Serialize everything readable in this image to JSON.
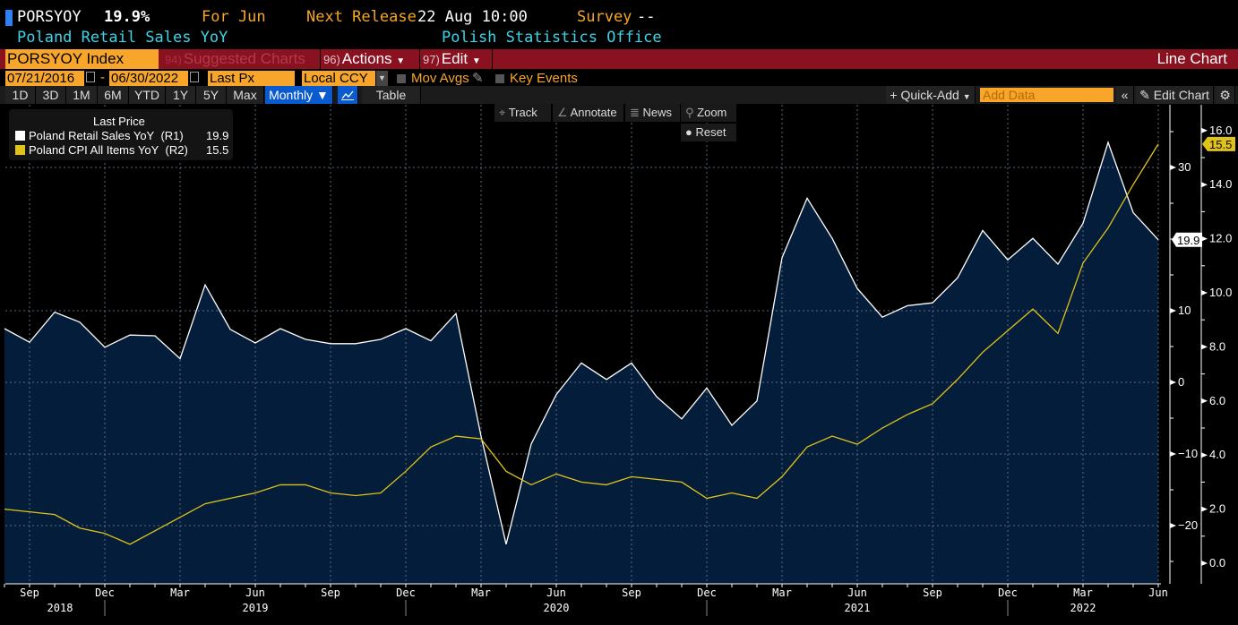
{
  "header": {
    "ticker": "PORSYOY",
    "last_value": "19.9%",
    "for_label": "For Jun",
    "next_release_label": "Next Release",
    "next_release_value": "22 Aug 10:00",
    "survey_label": "Survey",
    "survey_value": "--",
    "description": "Poland Retail Sales YoY",
    "source": "Polish Statistics Office"
  },
  "toolbar": {
    "security": "PORSYOY Index",
    "suggested_num": "94)",
    "suggested_label": "Suggested Charts",
    "actions_num": "96)",
    "actions_label": "Actions",
    "edit_num": "97)",
    "edit_label": "Edit",
    "chart_type": "Line Chart"
  },
  "range": {
    "start_date": "07/21/2016",
    "separator": "-",
    "end_date": "06/30/2022",
    "price_field": "Last Px",
    "currency": "Local CCY",
    "mov_avgs_label": "Mov Avgs",
    "key_events_label": "Key Events"
  },
  "periods": [
    "1D",
    "3D",
    "1M",
    "6M",
    "YTD",
    "1Y",
    "5Y",
    "Max"
  ],
  "frequency": "Monthly",
  "table_label": "Table",
  "quick_add_label": "Quick-Add",
  "add_data_placeholder": "Add Data",
  "edit_chart_label": "Edit Chart",
  "tools": {
    "track": "Track",
    "annotate": "Annotate",
    "news": "News",
    "zoom": "Zoom",
    "reset": "Reset"
  },
  "colors": {
    "series1": "#ffffff",
    "series2": "#e0c31a",
    "area_fill": "#031d3a",
    "accent_orange": "#f7a62b",
    "toolbar_red": "#8a1120",
    "cyan_text": "#3ed3e6",
    "selected_blue": "#0a5ad0"
  },
  "chart_data": {
    "type": "line",
    "title": "",
    "legend": {
      "header": "Last Price",
      "placement": "top-left",
      "entries": [
        {
          "name": "Poland Retail Sales YoY",
          "axis": "(R1)",
          "last": "19.9"
        },
        {
          "name": "Poland CPI All Items YoY",
          "axis": "(R2)",
          "last": "15.5"
        }
      ]
    },
    "x": [
      "2018-08",
      "2018-09",
      "2018-10",
      "2018-11",
      "2018-12",
      "2019-01",
      "2019-02",
      "2019-03",
      "2019-04",
      "2019-05",
      "2019-06",
      "2019-07",
      "2019-08",
      "2019-09",
      "2019-10",
      "2019-11",
      "2019-12",
      "2020-01",
      "2020-02",
      "2020-03",
      "2020-04",
      "2020-05",
      "2020-06",
      "2020-07",
      "2020-08",
      "2020-09",
      "2020-10",
      "2020-11",
      "2020-12",
      "2021-01",
      "2021-02",
      "2021-03",
      "2021-04",
      "2021-05",
      "2021-06",
      "2021-07",
      "2021-08",
      "2021-09",
      "2021-10",
      "2021-11",
      "2021-12",
      "2022-01",
      "2022-02",
      "2022-03",
      "2022-04",
      "2022-05",
      "2022-06"
    ],
    "x_tick_labels": [
      {
        "month": "2018-09",
        "label": "Sep"
      },
      {
        "month": "2018-12",
        "label": "Dec"
      },
      {
        "month": "2019-03",
        "label": "Mar"
      },
      {
        "month": "2019-06",
        "label": "Jun"
      },
      {
        "month": "2019-09",
        "label": "Sep"
      },
      {
        "month": "2019-12",
        "label": "Dec"
      },
      {
        "month": "2020-03",
        "label": "Mar"
      },
      {
        "month": "2020-06",
        "label": "Jun"
      },
      {
        "month": "2020-09",
        "label": "Sep"
      },
      {
        "month": "2020-12",
        "label": "Dec"
      },
      {
        "month": "2021-03",
        "label": "Mar"
      },
      {
        "month": "2021-06",
        "label": "Jun"
      },
      {
        "month": "2021-09",
        "label": "Sep"
      },
      {
        "month": "2021-12",
        "label": "Dec"
      },
      {
        "month": "2022-03",
        "label": "Mar"
      },
      {
        "month": "2022-06",
        "label": "Jun"
      }
    ],
    "x_year_labels": [
      {
        "month": "2018-10",
        "label": "2018"
      },
      {
        "month": "2019-06",
        "label": "2019"
      },
      {
        "month": "2020-06",
        "label": "2020"
      },
      {
        "month": "2021-06",
        "label": "2021"
      },
      {
        "month": "2022-03",
        "label": "2022"
      }
    ],
    "series": [
      {
        "name": "Poland Retail Sales YoY",
        "axis": "R1",
        "style": "area",
        "values": [
          7.5,
          5.6,
          9.8,
          8.4,
          4.9,
          6.6,
          6.5,
          3.3,
          13.6,
          7.4,
          5.5,
          7.5,
          6.0,
          5.4,
          5.4,
          6.0,
          7.5,
          5.8,
          9.6,
          -7.5,
          -22.6,
          -8.6,
          -1.7,
          2.7,
          0.4,
          2.7,
          -2.0,
          -5.1,
          -0.8,
          -6.0,
          -2.6,
          17.4,
          25.7,
          20.1,
          13.1,
          9.1,
          10.7,
          11.1,
          14.6,
          21.2,
          17.1,
          20.1,
          16.5,
          22.2,
          33.5,
          23.7,
          19.9
        ]
      },
      {
        "name": "Poland CPI All Items YoY",
        "axis": "R2",
        "style": "line",
        "values": [
          2.0,
          1.9,
          1.8,
          1.3,
          1.1,
          0.7,
          1.2,
          1.7,
          2.2,
          2.4,
          2.6,
          2.9,
          2.9,
          2.6,
          2.5,
          2.6,
          3.4,
          4.3,
          4.7,
          4.6,
          3.4,
          2.9,
          3.3,
          3.0,
          2.9,
          3.2,
          3.1,
          3.0,
          2.4,
          2.6,
          2.4,
          3.2,
          4.3,
          4.7,
          4.4,
          5.0,
          5.5,
          5.9,
          6.8,
          7.8,
          8.6,
          9.4,
          8.5,
          11.1,
          12.4,
          14.0,
          15.5
        ]
      }
    ],
    "axes": {
      "R1": {
        "ticks": [
          30,
          10,
          0,
          -10,
          -20
        ],
        "ylim": [
          -25,
          38
        ],
        "last_label": "19.9"
      },
      "R2": {
        "ticks": [
          "16.0",
          "14.0",
          "12.0",
          "10.0",
          "8.0",
          "6.0",
          "4.0",
          "2.0",
          "0.0"
        ],
        "ylim": [
          -0.4,
          16.5
        ],
        "last_label": "15.5"
      }
    },
    "grid": true
  }
}
